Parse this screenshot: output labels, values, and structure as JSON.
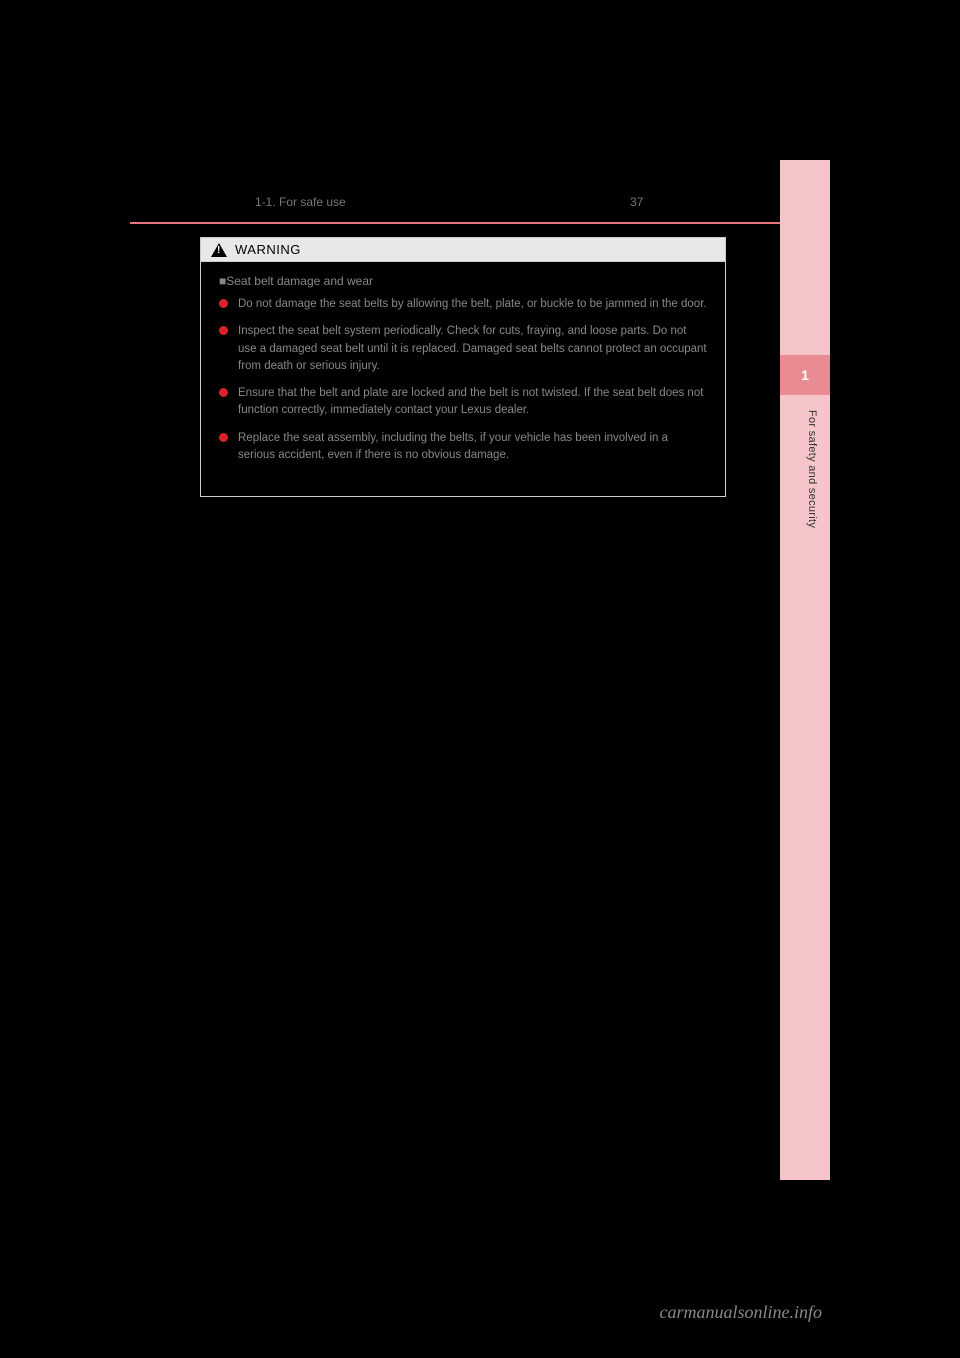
{
  "header": {
    "page_number": "37",
    "section": "1-1. For safe use"
  },
  "warning": {
    "title": "WARNING",
    "section_heading": "■Seat belt damage and wear",
    "bullets": [
      "Do not damage the seat belts by allowing the belt, plate, or buckle to be jammed in the door.",
      "Inspect the seat belt system periodically. Check for cuts, fraying, and loose parts. Do not use a damaged seat belt until it is replaced. Damaged seat belts cannot protect an occupant from death or serious injury.",
      "Ensure that the belt and plate are locked and the belt is not twisted. If the seat belt does not function correctly, immediately contact your Lexus dealer.",
      "Replace the seat assembly, including the belts, if your vehicle has been involved in a serious accident, even if there is no obvious damage."
    ]
  },
  "sidebar": {
    "chapter_number": "1",
    "chapter_label": "For safety and security"
  },
  "watermark": "carmanualsonline.info",
  "colors": {
    "background": "#000000",
    "accent_line": "#e8737a",
    "bullet": "#d8232a",
    "side_tab_bg": "#f5c5c9",
    "side_tab_active": "#e88b92",
    "warning_bar_bg": "#e8e8e8",
    "body_text": "#888888"
  }
}
